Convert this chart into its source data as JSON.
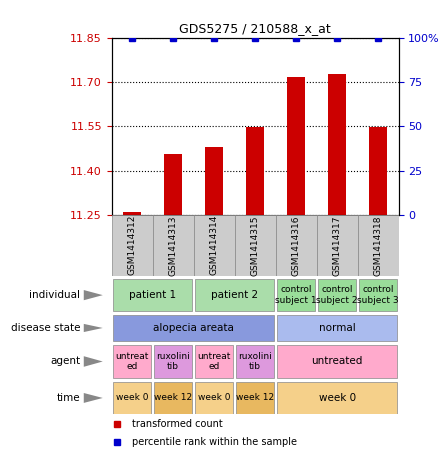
{
  "title": "GDS5275 / 210588_x_at",
  "samples": [
    "GSM1414312",
    "GSM1414313",
    "GSM1414314",
    "GSM1414315",
    "GSM1414316",
    "GSM1414317",
    "GSM1414318"
  ],
  "bar_values": [
    11.258,
    11.455,
    11.48,
    11.548,
    11.718,
    11.727,
    11.548
  ],
  "percentile_values": [
    100,
    100,
    100,
    100,
    100,
    100,
    100
  ],
  "ylim_left": [
    11.25,
    11.85
  ],
  "ylim_right": [
    0,
    100
  ],
  "yticks_left": [
    11.25,
    11.4,
    11.55,
    11.7,
    11.85
  ],
  "yticks_right": [
    0,
    25,
    50,
    75,
    100
  ],
  "bar_color": "#cc0000",
  "dot_color": "#0000cc",
  "annotation_rows": [
    {
      "label": "individual",
      "cells": [
        {
          "text": "patient 1",
          "span": 2,
          "color": "#aaddaa"
        },
        {
          "text": "patient 2",
          "span": 2,
          "color": "#aaddaa"
        },
        {
          "text": "control\nsubject 1",
          "span": 1,
          "color": "#99dd99"
        },
        {
          "text": "control\nsubject 2",
          "span": 1,
          "color": "#99dd99"
        },
        {
          "text": "control\nsubject 3",
          "span": 1,
          "color": "#99dd99"
        }
      ]
    },
    {
      "label": "disease state",
      "cells": [
        {
          "text": "alopecia areata",
          "span": 4,
          "color": "#8899dd"
        },
        {
          "text": "normal",
          "span": 3,
          "color": "#aabbee"
        }
      ]
    },
    {
      "label": "agent",
      "cells": [
        {
          "text": "untreat\ned",
          "span": 1,
          "color": "#ffaacc"
        },
        {
          "text": "ruxolini\ntib",
          "span": 1,
          "color": "#dd99dd"
        },
        {
          "text": "untreat\ned",
          "span": 1,
          "color": "#ffaacc"
        },
        {
          "text": "ruxolini\ntib",
          "span": 1,
          "color": "#dd99dd"
        },
        {
          "text": "untreated",
          "span": 3,
          "color": "#ffaacc"
        }
      ]
    },
    {
      "label": "time",
      "cells": [
        {
          "text": "week 0",
          "span": 1,
          "color": "#f5d08a"
        },
        {
          "text": "week 12",
          "span": 1,
          "color": "#e8b860"
        },
        {
          "text": "week 0",
          "span": 1,
          "color": "#f5d08a"
        },
        {
          "text": "week 12",
          "span": 1,
          "color": "#e8b860"
        },
        {
          "text": "week 0",
          "span": 3,
          "color": "#f5d08a"
        }
      ]
    }
  ],
  "legend": [
    {
      "color": "#cc0000",
      "label": "transformed count"
    },
    {
      "color": "#0000cc",
      "label": "percentile rank within the sample"
    }
  ],
  "sample_box_color": "#cccccc",
  "fig_width": 4.38,
  "fig_height": 4.53,
  "dpi": 100
}
